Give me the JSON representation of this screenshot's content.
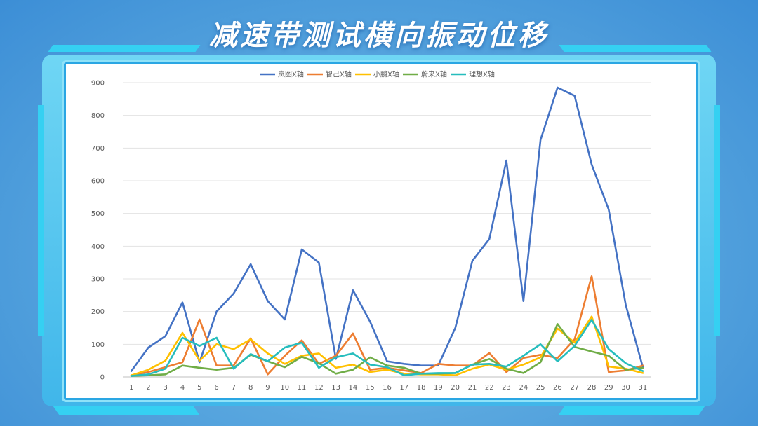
{
  "title": "减速带测试横向振动位移",
  "chart_data": {
    "type": "line",
    "title": "减速带测试横向振动位移",
    "xlabel": "",
    "ylabel": "",
    "ylim": [
      0,
      900
    ],
    "yticks": [
      0,
      100,
      200,
      300,
      400,
      500,
      600,
      700,
      800,
      900
    ],
    "grid": true,
    "legend_position": "top",
    "categories": [
      "1",
      "2",
      "3",
      "4",
      "5",
      "6",
      "7",
      "8",
      "9",
      "10",
      "11",
      "12",
      "13",
      "14",
      "15",
      "16",
      "17",
      "18",
      "19",
      "20",
      "21",
      "22",
      "23",
      "24",
      "25",
      "26",
      "27",
      "28",
      "29",
      "30",
      "31"
    ],
    "series": [
      {
        "name": "岚图X轴",
        "color": "#4472c4",
        "values": [
          18,
          90,
          125,
          228,
          45,
          200,
          255,
          345,
          232,
          176,
          390,
          350,
          55,
          265,
          170,
          48,
          40,
          35,
          35,
          150,
          355,
          422,
          662,
          232,
          725,
          885,
          860,
          650,
          512,
          220,
          30
        ]
      },
      {
        "name": "智己X轴",
        "color": "#ed7d31",
        "values": [
          5,
          15,
          30,
          45,
          176,
          35,
          35,
          118,
          8,
          65,
          112,
          40,
          65,
          133,
          22,
          28,
          20,
          12,
          40,
          35,
          35,
          73,
          15,
          58,
          68,
          58,
          115,
          308,
          15,
          20,
          35
        ]
      },
      {
        "name": "小鹏X轴",
        "color": "#ffc000",
        "values": [
          5,
          22,
          50,
          135,
          50,
          100,
          85,
          115,
          72,
          40,
          65,
          72,
          28,
          38,
          15,
          22,
          10,
          8,
          8,
          5,
          25,
          38,
          22,
          38,
          60,
          148,
          105,
          185,
          32,
          25,
          12
        ]
      },
      {
        "name": "蔚来X轴",
        "color": "#70ad47",
        "values": [
          3,
          5,
          8,
          35,
          28,
          22,
          28,
          68,
          48,
          30,
          62,
          42,
          10,
          22,
          60,
          35,
          28,
          10,
          10,
          12,
          38,
          55,
          25,
          12,
          45,
          162,
          92,
          78,
          65,
          22,
          28
        ]
      },
      {
        "name": "理想X轴",
        "color": "#26bdbd",
        "values": [
          3,
          8,
          25,
          120,
          95,
          120,
          25,
          70,
          48,
          90,
          105,
          28,
          60,
          72,
          38,
          30,
          5,
          10,
          12,
          12,
          38,
          40,
          32,
          65,
          100,
          48,
          95,
          175,
          85,
          42,
          18
        ]
      }
    ]
  }
}
